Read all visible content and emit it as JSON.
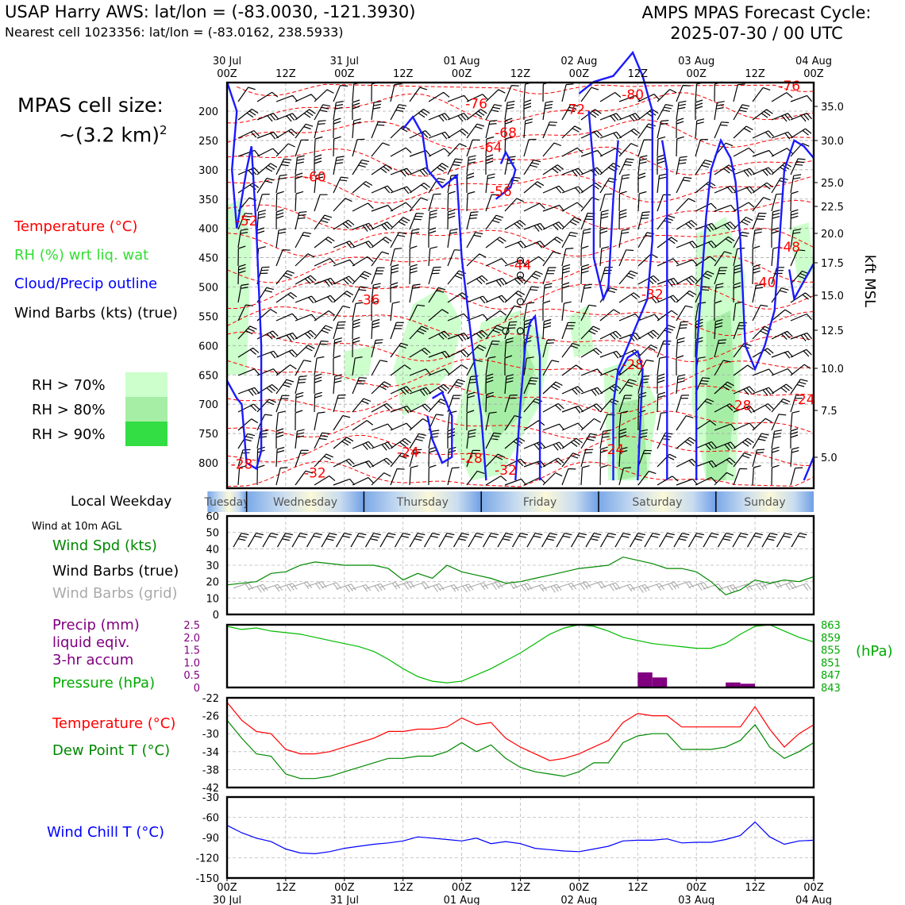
{
  "header": {
    "station": "USAP Harry AWS: lat/lon = (-83.0030, -121.3930)",
    "nearest_cell": "Nearest cell 1023356: lat/lon = (-83.0162, 238.5933)",
    "model_line1": "AMPS MPAS Forecast Cycle:",
    "model_line2": "2025-07-30 / 00 UTC"
  },
  "left_panel": {
    "cell_size_line1": "MPAS cell size:",
    "cell_size_line2": "~(3.2 km)",
    "cell_size_exp": "2",
    "legend": [
      {
        "text": "Temperature (°C)",
        "color": "#ff0000"
      },
      {
        "text": "RH (%) wrt liq. wat",
        "color": "#33dd33"
      },
      {
        "text": "Cloud/Precip outline",
        "color": "#0000ff"
      },
      {
        "text": "Wind Barbs (kts) (true)",
        "color": "#000000"
      }
    ],
    "rh_levels": [
      {
        "text": "RH > 70%",
        "color": "#ccffcc"
      },
      {
        "text": "RH > 80%",
        "color": "#a6eea6"
      },
      {
        "text": "RH > 90%",
        "color": "#33dd44"
      }
    ]
  },
  "time_axis": {
    "top_labels": [
      {
        "t": 0,
        "l1": "30 Jul",
        "l2": "00Z"
      },
      {
        "t": 12,
        "l1": "",
        "l2": "12Z"
      },
      {
        "t": 24,
        "l1": "31 Jul",
        "l2": "00Z"
      },
      {
        "t": 36,
        "l1": "",
        "l2": "12Z"
      },
      {
        "t": 48,
        "l1": "01 Aug",
        "l2": "00Z"
      },
      {
        "t": 60,
        "l1": "",
        "l2": "12Z"
      },
      {
        "t": 72,
        "l1": "02 Aug",
        "l2": "00Z"
      },
      {
        "t": 84,
        "l1": "",
        "l2": "12Z"
      },
      {
        "t": 96,
        "l1": "03 Aug",
        "l2": "00Z"
      },
      {
        "t": 108,
        "l1": "",
        "l2": "12Z"
      },
      {
        "t": 120,
        "l1": "04 Aug",
        "l2": "00Z"
      }
    ],
    "bottom_labels": [
      {
        "t": 0,
        "l1": "00Z",
        "l2": "30 Jul"
      },
      {
        "t": 12,
        "l1": "12Z",
        "l2": ""
      },
      {
        "t": 24,
        "l1": "00Z",
        "l2": "31 Jul"
      },
      {
        "t": 36,
        "l1": "12Z",
        "l2": ""
      },
      {
        "t": 48,
        "l1": "00Z",
        "l2": "01 Aug"
      },
      {
        "t": 60,
        "l1": "12Z",
        "l2": ""
      },
      {
        "t": 72,
        "l1": "00Z",
        "l2": "02 Aug"
      },
      {
        "t": 84,
        "l1": "12Z",
        "l2": ""
      },
      {
        "t": 96,
        "l1": "00Z",
        "l2": "03 Aug"
      },
      {
        "t": 108,
        "l1": "12Z",
        "l2": ""
      },
      {
        "t": 120,
        "l1": "00Z",
        "l2": "04 Aug"
      }
    ]
  },
  "weekday_bar": {
    "label": "Local Weekday",
    "days": [
      {
        "name": "Tuesday",
        "start": -4,
        "end": 4
      },
      {
        "name": "Wednesday",
        "start": 4,
        "end": 28
      },
      {
        "name": "Thursday",
        "start": 28,
        "end": 52
      },
      {
        "name": "Friday",
        "start": 52,
        "end": 76
      },
      {
        "name": "Saturday",
        "start": 76,
        "end": 100
      },
      {
        "name": "Sunday",
        "start": 100,
        "end": 124
      }
    ]
  },
  "chart_data": [
    {
      "type": "heatmap",
      "name_ref": "time-height cross section",
      "y_left_ticks": [
        200,
        250,
        300,
        350,
        400,
        450,
        500,
        550,
        600,
        650,
        700,
        750,
        800
      ],
      "y_right_ticks": [
        35.0,
        30.0,
        25.0,
        22.5,
        20.0,
        17.5,
        15.0,
        12.5,
        10.0,
        7.5,
        5.0
      ],
      "y_right_label": "kft MSL",
      "xlim": [
        0,
        120
      ],
      "temperature_labels": [
        {
          "t": 4,
          "p": 395,
          "text": "-52"
        },
        {
          "t": 18,
          "p": 320,
          "text": "-60"
        },
        {
          "t": 51,
          "p": 195,
          "text": "-76"
        },
        {
          "t": 54,
          "p": 270,
          "text": "-64"
        },
        {
          "t": 57,
          "p": 245,
          "text": "-68"
        },
        {
          "t": 56,
          "p": 345,
          "text": "-56"
        },
        {
          "t": 71,
          "p": 205,
          "text": "-72"
        },
        {
          "t": 83,
          "p": 180,
          "text": "-80"
        },
        {
          "t": 115,
          "p": 165,
          "text": "-76"
        },
        {
          "t": 60,
          "p": 470,
          "text": "-44"
        },
        {
          "t": 115,
          "p": 440,
          "text": "-48"
        },
        {
          "t": 110,
          "p": 500,
          "text": "-40"
        },
        {
          "t": 87,
          "p": 520,
          "text": "-32"
        },
        {
          "t": 29,
          "p": 530,
          "text": "-36"
        },
        {
          "t": 83,
          "p": 640,
          "text": "-28"
        },
        {
          "t": 105,
          "p": 710,
          "text": "-28"
        },
        {
          "t": 118,
          "p": 700,
          "text": "-24"
        },
        {
          "t": 3,
          "p": 810,
          "text": "-28"
        },
        {
          "t": 18,
          "p": 825,
          "text": "-32"
        },
        {
          "t": 37,
          "p": 790,
          "text": "-24"
        },
        {
          "t": 50,
          "p": 800,
          "text": "-28"
        },
        {
          "t": 57,
          "p": 820,
          "text": "-32"
        },
        {
          "t": 79,
          "p": 785,
          "text": "-24"
        }
      ]
    },
    {
      "type": "line",
      "name_ref": "10m wind",
      "header_note": "Wind at 10m AGL",
      "labels": [
        {
          "text": "Wind Spd (kts)",
          "color": "#008800"
        },
        {
          "text": "Wind Barbs (true)",
          "color": "#000000"
        },
        {
          "text": "Wind Barbs (grid)",
          "color": "#aaaaaa"
        }
      ],
      "ylim": [
        0,
        60
      ],
      "y_ticks": [
        0,
        10,
        20,
        30,
        40,
        50,
        60
      ],
      "x": [
        0,
        3,
        6,
        9,
        12,
        15,
        18,
        21,
        24,
        27,
        30,
        33,
        36,
        39,
        42,
        45,
        48,
        51,
        54,
        57,
        60,
        63,
        66,
        69,
        72,
        75,
        78,
        81,
        84,
        87,
        90,
        93,
        96,
        99,
        102,
        105,
        108,
        111,
        114,
        117,
        120
      ],
      "series": [
        {
          "name": "Wind Spd (kts)",
          "color": "#008800",
          "values": [
            18,
            19,
            20,
            25,
            26,
            30,
            32,
            31,
            30,
            30,
            30,
            28,
            21,
            25,
            22,
            30,
            26,
            24,
            22,
            19,
            20,
            22,
            24,
            26,
            28,
            29,
            30,
            35,
            33,
            31,
            28,
            28,
            26,
            20,
            12,
            15,
            21,
            19,
            21,
            20,
            23
          ]
        }
      ]
    },
    {
      "type": "line",
      "name_ref": "precip and pressure",
      "labels": [
        {
          "text": "Precip (mm)",
          "color": "#800080"
        },
        {
          "text": "liquid eqiv.",
          "color": "#800080"
        },
        {
          "text": "3-hr accum",
          "color": "#800080"
        },
        {
          "text": "Pressure (hPa)",
          "color": "#00aa00"
        }
      ],
      "left_ticks": [
        "0",
        "0.5",
        "1.0",
        "1.5",
        "2.0",
        "2.5"
      ],
      "right_ticks": [
        "843",
        "847",
        "851",
        "855",
        "859",
        "863"
      ],
      "right_label": "(hPa)",
      "precip_ylim": [
        0,
        2.5
      ],
      "pressure_ylim": [
        843,
        863
      ],
      "x": [
        0,
        3,
        6,
        9,
        12,
        15,
        18,
        21,
        24,
        27,
        30,
        33,
        36,
        39,
        42,
        45,
        48,
        51,
        54,
        57,
        60,
        63,
        66,
        69,
        72,
        75,
        78,
        81,
        84,
        87,
        90,
        93,
        96,
        99,
        102,
        105,
        108,
        111,
        114,
        117,
        120
      ],
      "series": [
        {
          "name": "Pressure (hPa)",
          "color": "#00bb00",
          "values": [
            862.5,
            861.5,
            862,
            861,
            860.5,
            860,
            859,
            858,
            857,
            856,
            854.5,
            852,
            849,
            846.5,
            845,
            844.5,
            845,
            847,
            849,
            851.5,
            854,
            857,
            860,
            862,
            863,
            862.5,
            861,
            859,
            858,
            857,
            856.5,
            856,
            855.5,
            855.5,
            857,
            860,
            862.5,
            863,
            861,
            859,
            857.5
          ]
        }
      ],
      "precip_bars": [
        {
          "t": 84,
          "value": 0.6
        },
        {
          "t": 87,
          "value": 0.4
        },
        {
          "t": 102,
          "value": 0.2
        },
        {
          "t": 105,
          "value": 0.15
        }
      ]
    },
    {
      "type": "line",
      "name_ref": "temperature and dew point",
      "labels": [
        {
          "text": "Temperature (°C)",
          "color": "#ff0000"
        },
        {
          "text": "Dew Point T (°C)",
          "color": "#008800"
        }
      ],
      "ylim": [
        -42,
        -22
      ],
      "y_ticks": [
        -42,
        -38,
        -34,
        -30,
        -26,
        -22
      ],
      "x": [
        0,
        3,
        6,
        9,
        12,
        15,
        18,
        21,
        24,
        27,
        30,
        33,
        36,
        39,
        42,
        45,
        48,
        51,
        54,
        57,
        60,
        63,
        66,
        69,
        72,
        75,
        78,
        81,
        84,
        87,
        90,
        93,
        96,
        99,
        102,
        105,
        108,
        111,
        114,
        117,
        120
      ],
      "series": [
        {
          "name": "Temperature (°C)",
          "color": "#ff0000",
          "values": [
            -23,
            -27,
            -29.5,
            -30,
            -33.5,
            -34.5,
            -34.5,
            -34,
            -33,
            -32,
            -31,
            -29.5,
            -29.5,
            -29,
            -29,
            -28.5,
            -26.5,
            -28,
            -27.5,
            -31,
            -33,
            -34.5,
            -36,
            -35.5,
            -34.5,
            -33,
            -31.5,
            -27.5,
            -25.5,
            -26,
            -26,
            -28.5,
            -28.5,
            -28.5,
            -28.5,
            -28.5,
            -24,
            -29,
            -33,
            -30,
            -28
          ]
        },
        {
          "name": "Dew Point T (°C)",
          "color": "#008800",
          "values": [
            -27,
            -31,
            -34.5,
            -35,
            -39,
            -40,
            -40,
            -39.5,
            -38.5,
            -37.5,
            -36.5,
            -35.5,
            -35.5,
            -35,
            -35,
            -34,
            -32,
            -34,
            -32.5,
            -35.5,
            -37.5,
            -38.5,
            -39,
            -39.5,
            -38.5,
            -36.5,
            -36.5,
            -32,
            -30.5,
            -30,
            -30,
            -33.5,
            -33.5,
            -33.5,
            -33,
            -31.5,
            -28,
            -33,
            -35.5,
            -34,
            -32
          ]
        }
      ]
    },
    {
      "type": "line",
      "name_ref": "wind chill",
      "labels": [
        {
          "text": "Wind Chill T (°C)",
          "color": "#0000ff"
        }
      ],
      "ylim": [
        -150,
        -30
      ],
      "y_ticks": [
        -150,
        -120,
        -90,
        -60,
        -30
      ],
      "x": [
        0,
        3,
        6,
        9,
        12,
        15,
        18,
        21,
        24,
        27,
        30,
        33,
        36,
        39,
        42,
        45,
        48,
        51,
        54,
        57,
        60,
        63,
        66,
        69,
        72,
        75,
        78,
        81,
        84,
        87,
        90,
        93,
        96,
        99,
        102,
        105,
        108,
        111,
        114,
        117,
        120
      ],
      "series": [
        {
          "name": "Wind Chill T (°C)",
          "color": "#0000ff",
          "values": [
            -72,
            -83,
            -91,
            -96,
            -107,
            -113,
            -114,
            -111,
            -106,
            -103,
            -100,
            -98,
            -95,
            -89,
            -91,
            -93,
            -95,
            -91,
            -99,
            -96,
            -99,
            -106,
            -108,
            -110,
            -111,
            -107,
            -103,
            -95,
            -94,
            -94,
            -92,
            -98,
            -97,
            -97,
            -93,
            -87,
            -67,
            -89,
            -100,
            -95,
            -94
          ]
        }
      ]
    }
  ]
}
